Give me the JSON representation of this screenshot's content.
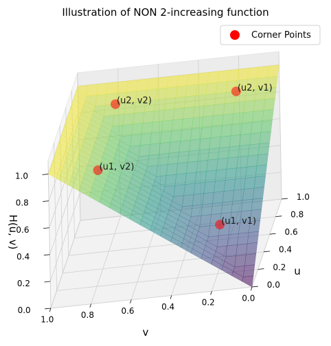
{
  "chart_data": {
    "type": "surface3d",
    "title": "Illustration of NON 2-increasing function",
    "xlabel": "u",
    "ylabel": "v",
    "zlabel": "H(u, v)",
    "x_ticks": [
      "0.0",
      "0.2",
      "0.4",
      "0.6",
      "0.8",
      "1.0"
    ],
    "y_ticks": [
      "0.0",
      "0.2",
      "0.4",
      "0.6",
      "0.8",
      "1.0"
    ],
    "z_ticks": [
      "0.0",
      "0.2",
      "0.4",
      "0.6",
      "0.8",
      "1.0"
    ],
    "xlim": [
      0,
      1
    ],
    "ylim": [
      0,
      1
    ],
    "zlim": [
      0,
      1.1
    ],
    "colormap": "viridis",
    "surface": "H(u, v) = max(u, v)",
    "legend": {
      "label": "Corner Points",
      "color": "#ff0000",
      "position": "top-right"
    },
    "points": [
      {
        "label": "(u1, v1)",
        "u": 0.3,
        "v": 0.2,
        "h": 0.3
      },
      {
        "label": "(u2, v1)",
        "u": 0.9,
        "v": 0.2,
        "h": 0.9
      },
      {
        "label": "(u1, v2)",
        "u": 0.3,
        "v": 0.8,
        "h": 0.8
      },
      {
        "label": "(u2, v2)",
        "u": 0.9,
        "v": 0.8,
        "h": 0.9
      }
    ],
    "grid": true
  }
}
